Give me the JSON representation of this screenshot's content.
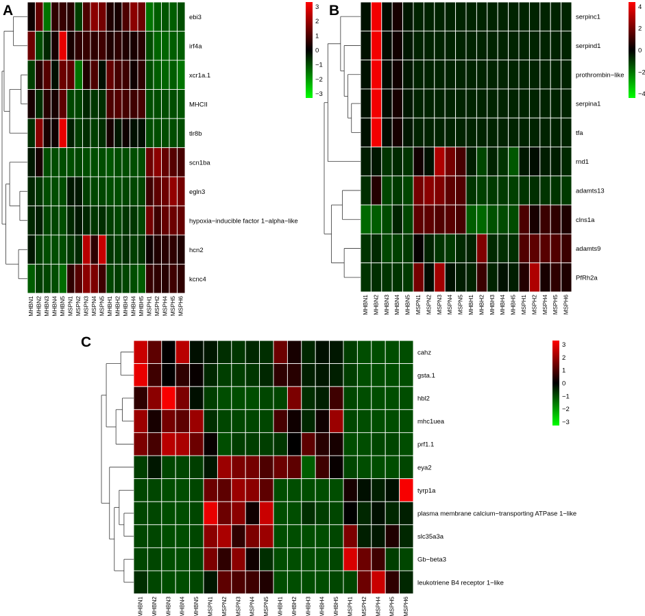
{
  "chart_data": [
    {
      "panel": "A",
      "type": "heatmap",
      "rows": [
        "ebi3",
        "irf4a",
        "xcr1a.1",
        "MHCII",
        "tlr8b",
        "scn1ba",
        "egln3",
        "hypoxia−inducible factor 1−alpha−like",
        "hcn2",
        "kcnc4"
      ],
      "columns": [
        "MHBN1",
        "MHBN2",
        "MHBN3",
        "MHBN4",
        "MHBN5",
        "MSPN1",
        "MSPN2",
        "MSPN3",
        "MSPN4",
        "MSPN5",
        "MHBH1",
        "MHBH2",
        "MHBH3",
        "MHBH4",
        "MHBH5",
        "MSPH1",
        "MSPH2",
        "MSPH4",
        "MSPH5",
        "MSPH6"
      ],
      "values": [
        [
          0.2,
          1.3,
          -1.5,
          0.6,
          0.7,
          0.5,
          -0.8,
          1.0,
          1.8,
          1.5,
          0.4,
          0.3,
          1.0,
          1.8,
          1.4,
          -1.5,
          -1.2,
          -1.1,
          -1.2,
          -1.0
        ],
        [
          1.4,
          -1.0,
          -0.5,
          0.3,
          3.0,
          0.3,
          0.6,
          0.7,
          0.6,
          0.8,
          0.4,
          0.6,
          0.4,
          0.3,
          0.5,
          -1.0,
          -1.3,
          -1.3,
          -1.2,
          -1.2
        ],
        [
          -0.8,
          0.5,
          1.1,
          -0.2,
          1.4,
          1.2,
          -1.5,
          0.4,
          1.0,
          -0.2,
          1.3,
          0.9,
          0.8,
          0.2,
          0.6,
          -1.0,
          -1.2,
          -1.3,
          -1.2,
          -1.5
        ],
        [
          0.3,
          -0.6,
          0.5,
          0.3,
          1.2,
          -0.9,
          -0.9,
          -0.5,
          -0.7,
          -0.6,
          1.0,
          1.1,
          0.9,
          0.8,
          0.9,
          -1.0,
          -1.0,
          -1.0,
          -1.0,
          -1.1
        ],
        [
          -0.6,
          1.8,
          0.3,
          0.2,
          3.0,
          -0.4,
          -0.8,
          -0.6,
          -0.8,
          -0.6,
          0.3,
          -0.3,
          0.2,
          -0.2,
          -0.2,
          -1.0,
          -1.0,
          -1.0,
          -1.0,
          -1.0
        ],
        [
          -0.3,
          0.3,
          -1.0,
          -1.0,
          -1.0,
          -1.0,
          -0.9,
          -1.0,
          -1.0,
          -1.0,
          -1.1,
          -1.0,
          -1.0,
          -1.0,
          -1.0,
          1.4,
          1.8,
          1.3,
          1.1,
          0.9
        ],
        [
          -0.5,
          -0.7,
          -1.0,
          -1.0,
          -1.0,
          -0.3,
          -0.3,
          -0.8,
          -0.9,
          -0.9,
          -1.0,
          -1.0,
          -0.9,
          -0.9,
          -0.9,
          0.8,
          1.2,
          1.4,
          1.9,
          1.5
        ],
        [
          -0.5,
          -0.4,
          -0.9,
          -0.9,
          -1.0,
          -0.5,
          -0.3,
          -0.5,
          -0.7,
          -0.6,
          -0.8,
          -0.9,
          -0.7,
          -0.7,
          -0.9,
          1.5,
          0.8,
          1.3,
          1.4,
          1.3
        ],
        [
          -0.3,
          -0.8,
          -1.0,
          -1.0,
          -1.0,
          -0.7,
          -0.5,
          2.4,
          0.6,
          2.6,
          -0.7,
          -0.8,
          -0.6,
          -0.8,
          -0.7,
          0.2,
          0.4,
          0.5,
          0.6,
          0.4
        ],
        [
          -1.2,
          -0.8,
          -0.9,
          -1.0,
          -1.4,
          0.6,
          1.1,
          1.8,
          1.6,
          0.8,
          -0.9,
          -0.8,
          -0.9,
          -1.0,
          -1.2,
          0.7,
          0.6,
          0.5,
          0.8,
          0.6
        ]
      ],
      "colorbar_ticks": [
        "3",
        "2",
        "1",
        "0",
        "−1",
        "−2",
        "−3"
      ],
      "vmin": -3.3,
      "vmax": 3.3
    },
    {
      "panel": "B",
      "type": "heatmap",
      "rows": [
        "serpinc1",
        "serpind1",
        "prothrombin−like",
        "serpina1",
        "tfa",
        "rnd1",
        "adamts13",
        "clns1a",
        "adamts9",
        "PfRh2a"
      ],
      "columns": [
        "MHBN1",
        "MHBN2",
        "MHBN3",
        "MHBN4",
        "MHBN5",
        "MSPN1",
        "MSPN2",
        "MSPN3",
        "MSPN4",
        "MSPN5",
        "MHBH1",
        "MHBH2",
        "MHBH3",
        "MHBH4",
        "MHBH5",
        "MSPH1",
        "MSPH2",
        "MSPH4",
        "MSPH5",
        "MSPH6"
      ],
      "values": [
        [
          -0.3,
          4.2,
          -0.2,
          0.4,
          -0.4,
          -0.6,
          -0.6,
          -0.6,
          -0.6,
          -0.6,
          -0.6,
          -0.6,
          -0.6,
          -0.6,
          -0.6,
          -0.6,
          -0.6,
          -0.6,
          -0.6,
          -0.6
        ],
        [
          -0.3,
          4.2,
          -0.2,
          0.3,
          -0.4,
          -0.6,
          -0.6,
          -0.6,
          -0.6,
          -0.6,
          -0.6,
          -0.6,
          -0.6,
          -0.6,
          -0.6,
          -0.6,
          -0.6,
          -0.6,
          -0.6,
          -0.6
        ],
        [
          -0.3,
          4.2,
          -0.2,
          0.3,
          -0.4,
          -0.6,
          -0.6,
          -0.6,
          -0.6,
          -0.6,
          -0.6,
          -0.6,
          -0.6,
          -0.6,
          -0.6,
          -0.6,
          -0.6,
          -0.6,
          -0.6,
          -0.6
        ],
        [
          -0.3,
          4.2,
          -0.2,
          0.4,
          -0.4,
          -0.6,
          -0.6,
          -0.6,
          -0.6,
          -0.6,
          -0.6,
          -0.6,
          -0.6,
          -0.6,
          -0.6,
          -0.6,
          -0.6,
          -0.6,
          -0.6,
          -0.6
        ],
        [
          -0.3,
          4.2,
          -0.2,
          0.4,
          -0.4,
          -0.6,
          -0.6,
          -0.6,
          -0.6,
          -0.6,
          -0.6,
          -0.6,
          -0.6,
          -0.6,
          -0.6,
          -0.6,
          -0.6,
          -0.6,
          -0.6,
          -0.6
        ],
        [
          -0.5,
          -0.4,
          -0.9,
          -0.7,
          -0.9,
          0.3,
          -0.3,
          3.0,
          2.0,
          1.2,
          -0.5,
          -1.2,
          -0.6,
          -0.9,
          -1.5,
          -0.4,
          -0.2,
          -0.5,
          -0.5,
          -0.7
        ],
        [
          -0.8,
          0.6,
          -1.2,
          -1.0,
          -1.2,
          2.0,
          2.4,
          2.2,
          1.6,
          1.4,
          -0.9,
          -1.1,
          -1.0,
          -1.0,
          -1.1,
          -0.9,
          -0.8,
          -0.9,
          -0.9,
          -1.0
        ],
        [
          -1.8,
          -1.6,
          -1.3,
          -0.6,
          -1.2,
          1.6,
          1.6,
          1.4,
          1.5,
          1.2,
          -1.6,
          -1.8,
          -1.4,
          -1.3,
          -1.3,
          1.3,
          0.4,
          1.0,
          0.8,
          0.5
        ],
        [
          -0.9,
          -0.7,
          -1.2,
          -1.1,
          -1.0,
          0.1,
          -0.6,
          -0.9,
          -1.0,
          -0.7,
          -0.6,
          2.2,
          -0.7,
          -0.8,
          -0.8,
          1.4,
          1.6,
          1.5,
          1.4,
          1.0
        ],
        [
          -0.9,
          -0.8,
          -0.9,
          -0.9,
          -1.0,
          2.0,
          -0.2,
          2.8,
          -0.3,
          -0.5,
          -0.6,
          1.0,
          -0.6,
          -0.3,
          -0.5,
          0.6,
          3.0,
          0.4,
          0.8,
          0.5
        ]
      ],
      "colorbar_ticks": [
        "4",
        "2",
        "0",
        "−2",
        "−4"
      ],
      "vmin": -4.4,
      "vmax": 4.4
    },
    {
      "panel": "C",
      "type": "heatmap",
      "rows": [
        "cahz",
        "gsta.1",
        "hbl2",
        "mhc1uea",
        "prf1.1",
        "eya2",
        "tyrp1a",
        "plasma membrane calcium−transporting ATPase 1−like",
        "slc35a3a",
        "Gb−beta3",
        "leukotriene B4 receptor 1−like"
      ],
      "columns": [
        "MHBN1",
        "MHBN2",
        "MHBN3",
        "MHBN4",
        "MHBN5",
        "MSPN1",
        "MSPN2",
        "MSPN3",
        "MSPN4",
        "MSPN5",
        "MHBH1",
        "MHBH2",
        "MHBH3",
        "MHBH4",
        "MHBH5",
        "MSPH1",
        "MSPH2",
        "MSPH4",
        "MSPH5",
        "MSPH6"
      ],
      "values": [
        [
          2.6,
          1.2,
          0.0,
          2.4,
          -0.2,
          -0.3,
          -0.6,
          -0.7,
          -0.5,
          -0.6,
          1.4,
          0.3,
          -0.5,
          -0.2,
          -0.3,
          -0.8,
          -1.0,
          -1.0,
          -1.0,
          -1.0
        ],
        [
          3.0,
          0.8,
          0.0,
          0.6,
          0.1,
          -0.5,
          -0.8,
          -0.8,
          -0.7,
          -0.5,
          0.6,
          0.5,
          -0.4,
          -0.3,
          -0.4,
          -0.8,
          -1.0,
          -1.0,
          -1.0,
          -1.0
        ],
        [
          0.6,
          1.8,
          3.2,
          1.6,
          -0.2,
          -0.8,
          -1.0,
          -1.0,
          -1.0,
          -0.9,
          -0.9,
          1.6,
          -0.6,
          -0.4,
          0.8,
          -0.9,
          -1.0,
          -1.0,
          -1.0,
          -1.0
        ],
        [
          2.0,
          0.3,
          1.5,
          1.2,
          2.0,
          -0.6,
          -0.9,
          -0.9,
          -0.9,
          -0.9,
          0.9,
          0.2,
          -0.5,
          0.2,
          2.0,
          -0.9,
          -1.0,
          -1.0,
          -1.0,
          -1.0
        ],
        [
          1.6,
          0.9,
          2.4,
          2.2,
          1.4,
          0.1,
          -1.0,
          -0.8,
          -0.8,
          -0.8,
          -0.7,
          0.0,
          1.2,
          0.5,
          0.3,
          -1.0,
          -1.0,
          -0.9,
          -0.9,
          -1.0
        ],
        [
          -0.8,
          -0.3,
          -0.9,
          -0.9,
          -0.8,
          -0.3,
          2.0,
          1.6,
          1.5,
          1.0,
          1.4,
          1.2,
          -1.2,
          0.8,
          0.1,
          -0.9,
          -1.0,
          -1.0,
          -1.0,
          -0.9
        ],
        [
          -0.9,
          -0.9,
          -1.0,
          -1.0,
          -0.9,
          1.4,
          1.2,
          2.0,
          1.8,
          1.2,
          -1.0,
          -1.0,
          -1.0,
          -1.0,
          -1.0,
          0.3,
          -0.2,
          -0.4,
          -0.2,
          3.2
        ],
        [
          -0.9,
          -0.9,
          -1.0,
          -1.0,
          -0.9,
          3.0,
          1.4,
          1.8,
          0.2,
          2.6,
          -1.0,
          -1.0,
          -0.6,
          -0.8,
          -0.9,
          0.0,
          -0.5,
          -0.2,
          -0.5,
          -0.4
        ],
        [
          -0.9,
          -0.9,
          -1.0,
          -1.0,
          -0.9,
          1.8,
          2.2,
          0.6,
          1.6,
          2.0,
          -1.0,
          -1.0,
          -1.0,
          -1.0,
          -0.9,
          1.6,
          -0.4,
          -0.3,
          0.4,
          -0.5
        ],
        [
          -0.9,
          -0.9,
          -1.0,
          -1.0,
          -0.9,
          1.6,
          0.6,
          1.8,
          0.2,
          -0.6,
          -1.0,
          -1.0,
          -1.0,
          -1.0,
          -0.9,
          2.8,
          1.4,
          0.8,
          -0.8,
          -0.9
        ],
        [
          -0.6,
          -0.9,
          -1.0,
          -1.0,
          -0.9,
          -0.3,
          1.2,
          1.0,
          0.8,
          0.4,
          -1.0,
          -1.0,
          -1.0,
          -1.0,
          -0.9,
          -0.9,
          1.4,
          2.6,
          0.6,
          -0.5
        ]
      ],
      "colorbar_ticks": [
        "3",
        "2",
        "1",
        "0",
        "−1",
        "−2",
        "−3"
      ],
      "vmin": -3.3,
      "vmax": 3.3
    }
  ],
  "colors": {
    "high": "#ff0000",
    "mid": "#000000",
    "low": "#00ff00"
  }
}
